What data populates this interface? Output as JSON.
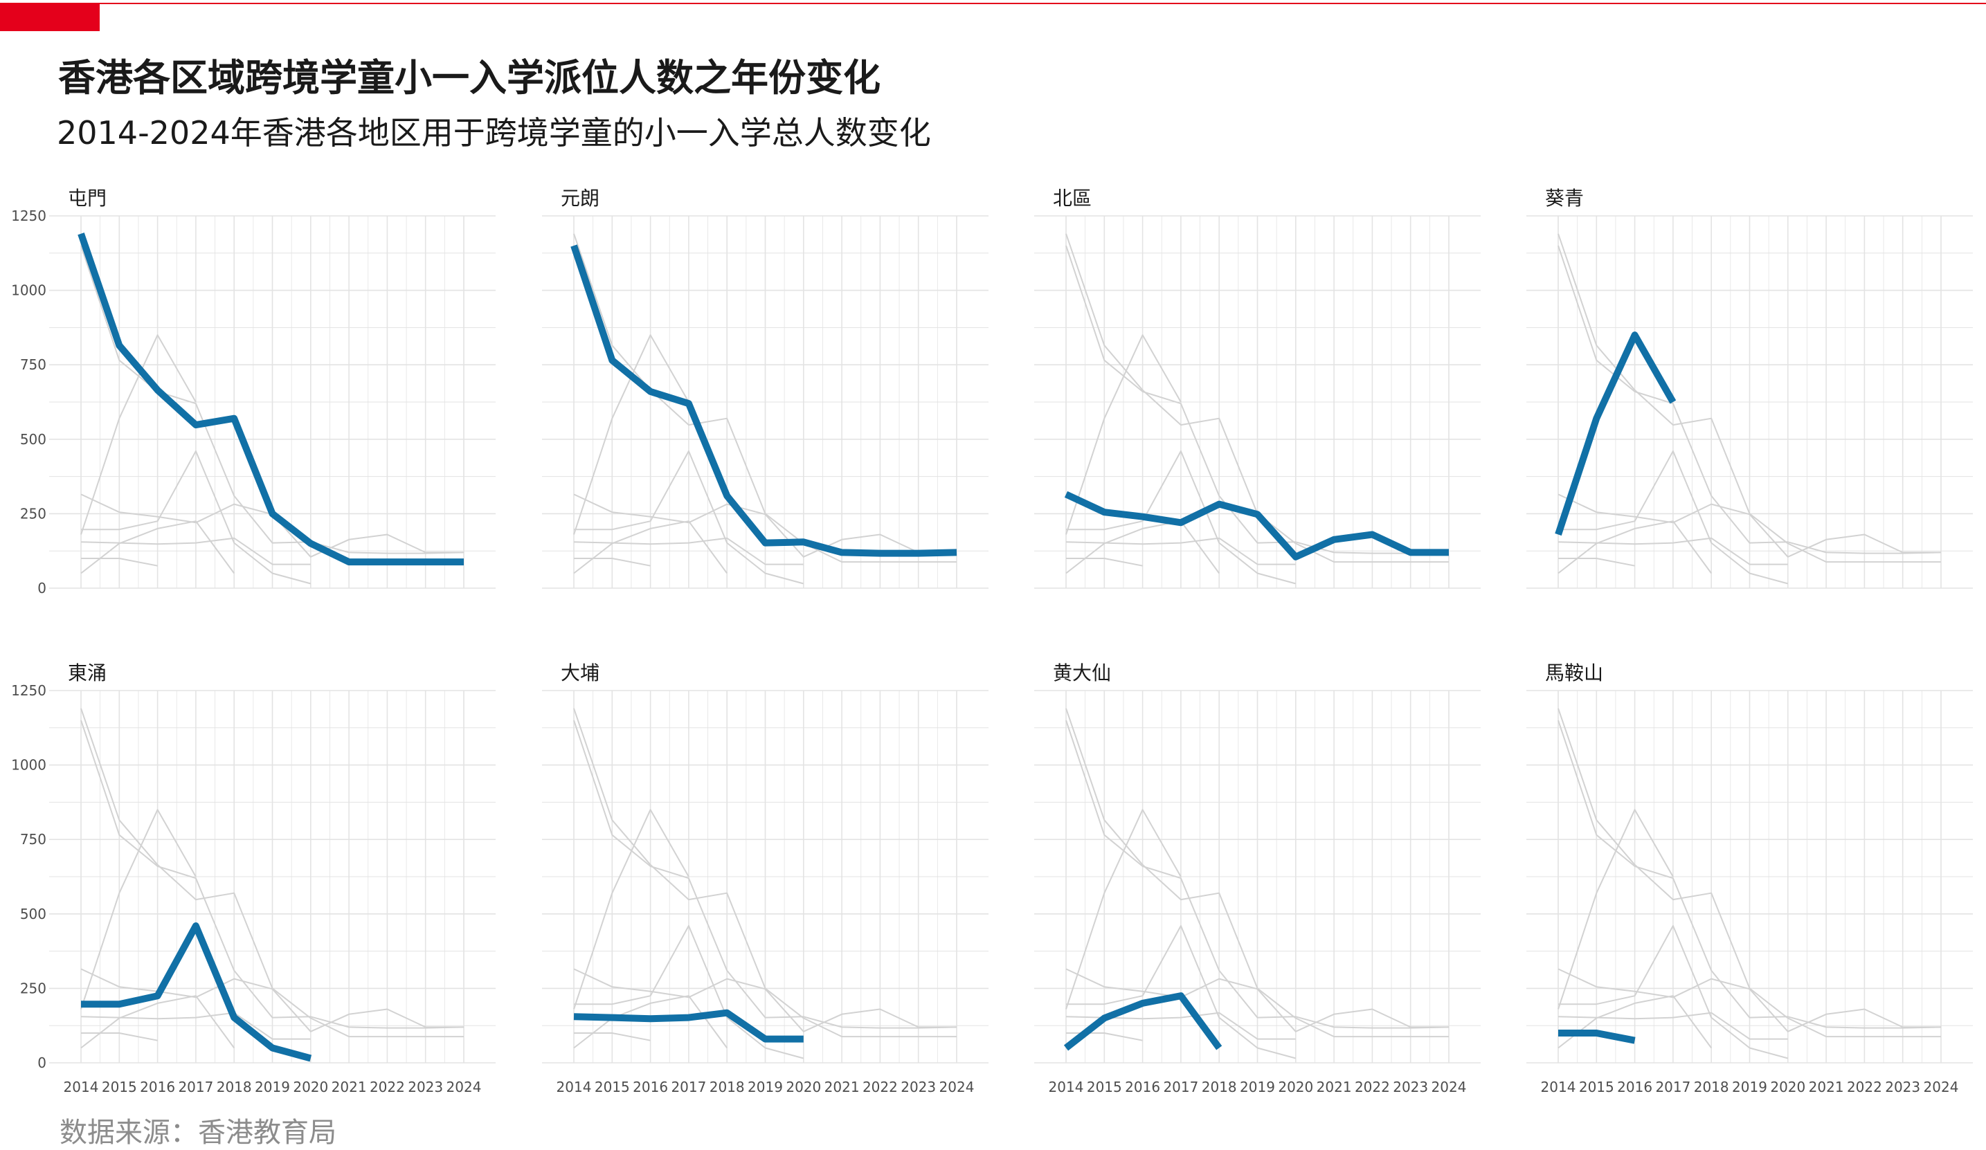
{
  "title": "香港各区域跨境学童小一入学派位人数之年份变化",
  "subtitle": "2014-2024年香港各地区用于跨境学童的小一入学总人数变化",
  "source": "数据来源：香港教育局",
  "colors": {
    "highlight": "#1170a6",
    "context": "#d2d2d2",
    "grid": "#e3e3e3",
    "text": "#4d4d4d",
    "accent": "#e4001b"
  },
  "chart_data": {
    "type": "line",
    "layout": "small-multiples",
    "x": [
      2014,
      2015,
      2016,
      2017,
      2018,
      2019,
      2020,
      2021,
      2022,
      2023,
      2024
    ],
    "ylim": [
      0,
      1250
    ],
    "yticks": [
      0,
      250,
      500,
      750,
      1000,
      1250
    ],
    "grid": true,
    "series": [
      {
        "name": "屯門",
        "values": [
          1190,
          815,
          665,
          548,
          570,
          250,
          150,
          88,
          88,
          88,
          88
        ]
      },
      {
        "name": "元朗",
        "values": [
          1150,
          765,
          660,
          620,
          310,
          152,
          155,
          120,
          117,
          117,
          120
        ]
      },
      {
        "name": "北區",
        "values": [
          315,
          255,
          240,
          220,
          282,
          248,
          105,
          163,
          180,
          120,
          120
        ]
      },
      {
        "name": "葵青",
        "values": [
          180,
          570,
          850,
          625,
          null,
          null,
          null,
          null,
          null,
          null,
          null
        ]
      },
      {
        "name": "東涌",
        "values": [
          197,
          197,
          225,
          460,
          152,
          50,
          15,
          null,
          null,
          null,
          null
        ]
      },
      {
        "name": "大埔",
        "values": [
          155,
          152,
          148,
          152,
          168,
          80,
          80,
          null,
          null,
          null,
          null
        ]
      },
      {
        "name": "黄大仙",
        "values": [
          50,
          150,
          200,
          225,
          50,
          null,
          null,
          null,
          null,
          null,
          null
        ]
      },
      {
        "name": "馬鞍山",
        "values": [
          100,
          100,
          75,
          null,
          null,
          null,
          null,
          null,
          null,
          null,
          null
        ]
      }
    ]
  }
}
